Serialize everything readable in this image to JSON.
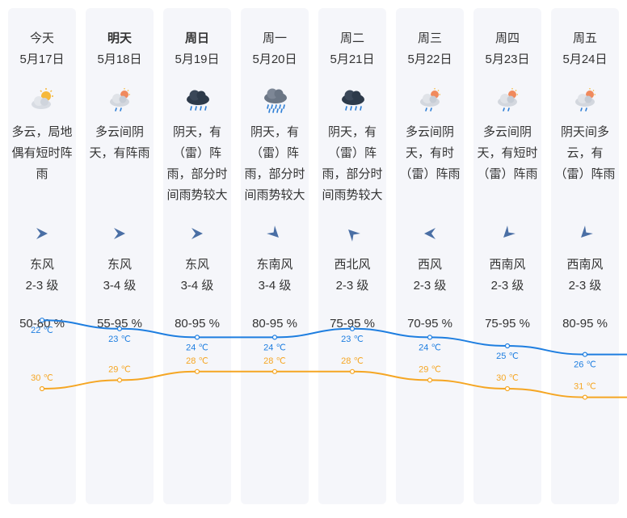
{
  "days": [
    {
      "day": "今天",
      "date": "5月17日",
      "bold": false,
      "icon": "partly-cloudy-sun-icon",
      "desc": "多云，局地偶有短时阵雨",
      "wind_dir": "东风",
      "wind_level": "2-3 级",
      "humidity": "50-80 %",
      "wind_angle": 180
    },
    {
      "day": "明天",
      "date": "5月18日",
      "bold": true,
      "icon": "cloudy-rain-icon",
      "desc": "多云间阴天，有阵雨",
      "wind_dir": "东风",
      "wind_level": "3-4 级",
      "humidity": "55-95 %",
      "wind_angle": 180
    },
    {
      "day": "周日",
      "date": "5月19日",
      "bold": true,
      "icon": "thunder-rain-icon",
      "desc": "阴天，有（雷）阵雨，部分时间雨势较大",
      "wind_dir": "东风",
      "wind_level": "3-4 级",
      "humidity": "80-95 %",
      "wind_angle": 180
    },
    {
      "day": "周一",
      "date": "5月20日",
      "bold": false,
      "icon": "heavy-rain-icon",
      "desc": "阴天，有（雷）阵雨，部分时间雨势较大",
      "wind_dir": "东南风",
      "wind_level": "3-4 级",
      "humidity": "80-95 %",
      "wind_angle": 225
    },
    {
      "day": "周二",
      "date": "5月21日",
      "bold": false,
      "icon": "thunder-rain-icon",
      "desc": "阴天，有（雷）阵雨，部分时间雨势较大",
      "wind_dir": "西北风",
      "wind_level": "2-3 级",
      "humidity": "75-95 %",
      "wind_angle": 45
    },
    {
      "day": "周三",
      "date": "5月22日",
      "bold": false,
      "icon": "cloudy-rain-icon",
      "desc": "多云间阴天，有时（雷）阵雨",
      "wind_dir": "西风",
      "wind_level": "2-3 级",
      "humidity": "70-95 %",
      "wind_angle": 0
    },
    {
      "day": "周四",
      "date": "5月23日",
      "bold": false,
      "icon": "cloudy-rain-icon",
      "desc": "多云间阴天，有短时（雷）阵雨",
      "wind_dir": "西南风",
      "wind_level": "2-3 级",
      "humidity": "75-95 %",
      "wind_angle": -45
    },
    {
      "day": "周五",
      "date": "5月24日",
      "bold": false,
      "icon": "cloudy-rain-icon",
      "desc": "阴天间多云，有（雷）阵雨",
      "wind_dir": "西南风",
      "wind_level": "2-3 级",
      "humidity": "80-95 %",
      "wind_angle": -45
    }
  ],
  "chart_data": {
    "type": "line",
    "categories": [
      "5月17日",
      "5月18日",
      "5月19日",
      "5月20日",
      "5月21日",
      "5月22日",
      "5月23日",
      "5月24日"
    ],
    "series": [
      {
        "values": [
          30,
          29,
          28,
          28,
          28,
          29,
          30,
          31
        ],
        "color": "#f5a623"
      },
      {
        "values": [
          22,
          23,
          24,
          24,
          23,
          24,
          25,
          26
        ],
        "color": "#1e7ee0"
      }
    ],
    "unit": "℃"
  }
}
